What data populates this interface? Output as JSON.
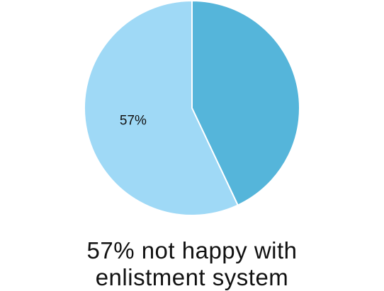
{
  "chart_data": {
    "type": "pie",
    "slices": [
      {
        "value": 43,
        "color": "#55b5da",
        "label": ""
      },
      {
        "value": 57,
        "color": "#9fd9f6",
        "label": "57%"
      }
    ],
    "start": "top",
    "direction": "clockwise",
    "border_color": "#ffffff"
  },
  "caption": {
    "line1": "57% not happy with",
    "line2": "enlistment system"
  }
}
